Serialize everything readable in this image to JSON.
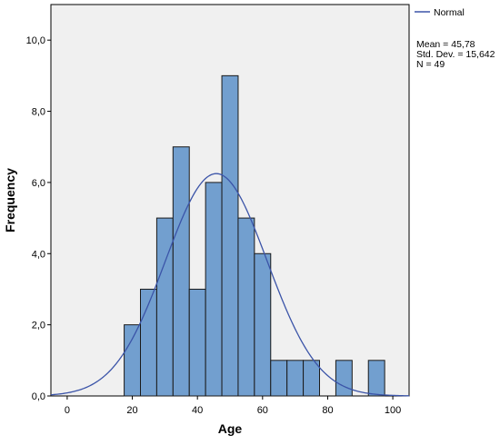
{
  "chart_data": {
    "type": "bar",
    "subtype": "histogram",
    "xlabel": "Age",
    "ylabel": "Frequency",
    "xlim": [
      -5,
      105
    ],
    "ylim": [
      0,
      11
    ],
    "x_ticks": [
      0,
      20,
      40,
      60,
      80,
      100
    ],
    "x_tick_labels": [
      "0",
      "20",
      "40",
      "60",
      "80",
      "100"
    ],
    "y_ticks": [
      0,
      2,
      4,
      6,
      8,
      10
    ],
    "y_tick_labels": [
      "0,0",
      "2,0",
      "4,0",
      "6,0",
      "8,0",
      "10,0"
    ],
    "bin_width": 5,
    "bins": [
      {
        "start": 17.5,
        "end": 22.5,
        "count": 2
      },
      {
        "start": 22.5,
        "end": 27.5,
        "count": 3
      },
      {
        "start": 27.5,
        "end": 32.5,
        "count": 5
      },
      {
        "start": 32.5,
        "end": 37.5,
        "count": 7
      },
      {
        "start": 37.5,
        "end": 42.5,
        "count": 3
      },
      {
        "start": 42.5,
        "end": 47.5,
        "count": 6
      },
      {
        "start": 47.5,
        "end": 52.5,
        "count": 9
      },
      {
        "start": 52.5,
        "end": 57.5,
        "count": 5
      },
      {
        "start": 57.5,
        "end": 62.5,
        "count": 4
      },
      {
        "start": 62.5,
        "end": 67.5,
        "count": 1
      },
      {
        "start": 67.5,
        "end": 72.5,
        "count": 1
      },
      {
        "start": 72.5,
        "end": 77.5,
        "count": 1
      },
      {
        "start": 82.5,
        "end": 87.5,
        "count": 1
      },
      {
        "start": 92.5,
        "end": 97.5,
        "count": 1
      }
    ],
    "normal_curve": {
      "name": "Normal",
      "mean": 45.78,
      "std_dev": 15.642,
      "n": 49
    },
    "legend": {
      "entries": [
        "Normal"
      ],
      "placement": "top-right, outside plot"
    },
    "stats_lines": [
      "Mean = 45,78",
      "Std. Dev. = 15,642",
      "N = 49"
    ],
    "grid": false,
    "colors": {
      "bar_fill": "#729fcf",
      "bar_stroke": "#1a1a1a",
      "curve": "#3b54a8",
      "plot_background": "#f0f0f0"
    }
  }
}
